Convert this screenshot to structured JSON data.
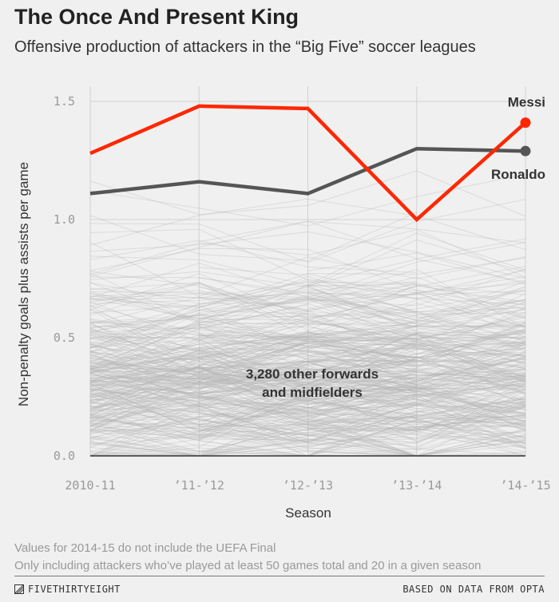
{
  "title": "The Once And Present King",
  "subtitle": "Offensive production of attackers in the “Big Five” soccer leagues",
  "notes": [
    "Values for 2014-15 do not include the UEFA Final",
    "Only including attackers who’ve played at least 50 games total and 20 in a given season"
  ],
  "footer": {
    "brand": "FIVETHIRTYEIGHT",
    "source": "BASED ON DATA FROM OPTA"
  },
  "chart_data": {
    "type": "line",
    "title": "The Once And Present King",
    "xlabel": "Season",
    "ylabel": "Non-penalty goals plus assists per game",
    "categories": [
      "2010-11",
      "’11-’12",
      "’12-’13",
      "’13-’14",
      "’14-’15"
    ],
    "ylim": [
      0,
      1.5
    ],
    "yticks": [
      "0.0",
      "0.5",
      "1.0",
      "1.5"
    ],
    "grid": true,
    "series": [
      {
        "name": "Messi",
        "values": [
          1.28,
          1.48,
          1.47,
          1.0,
          1.41
        ],
        "color": "#ff2700"
      },
      {
        "name": "Ronaldo",
        "values": [
          1.11,
          1.16,
          1.11,
          1.3,
          1.29
        ],
        "color": "#555555"
      }
    ],
    "background_series_label": "3,280 other forwards\nand midfielders",
    "background_color": "#b4b4b4"
  }
}
